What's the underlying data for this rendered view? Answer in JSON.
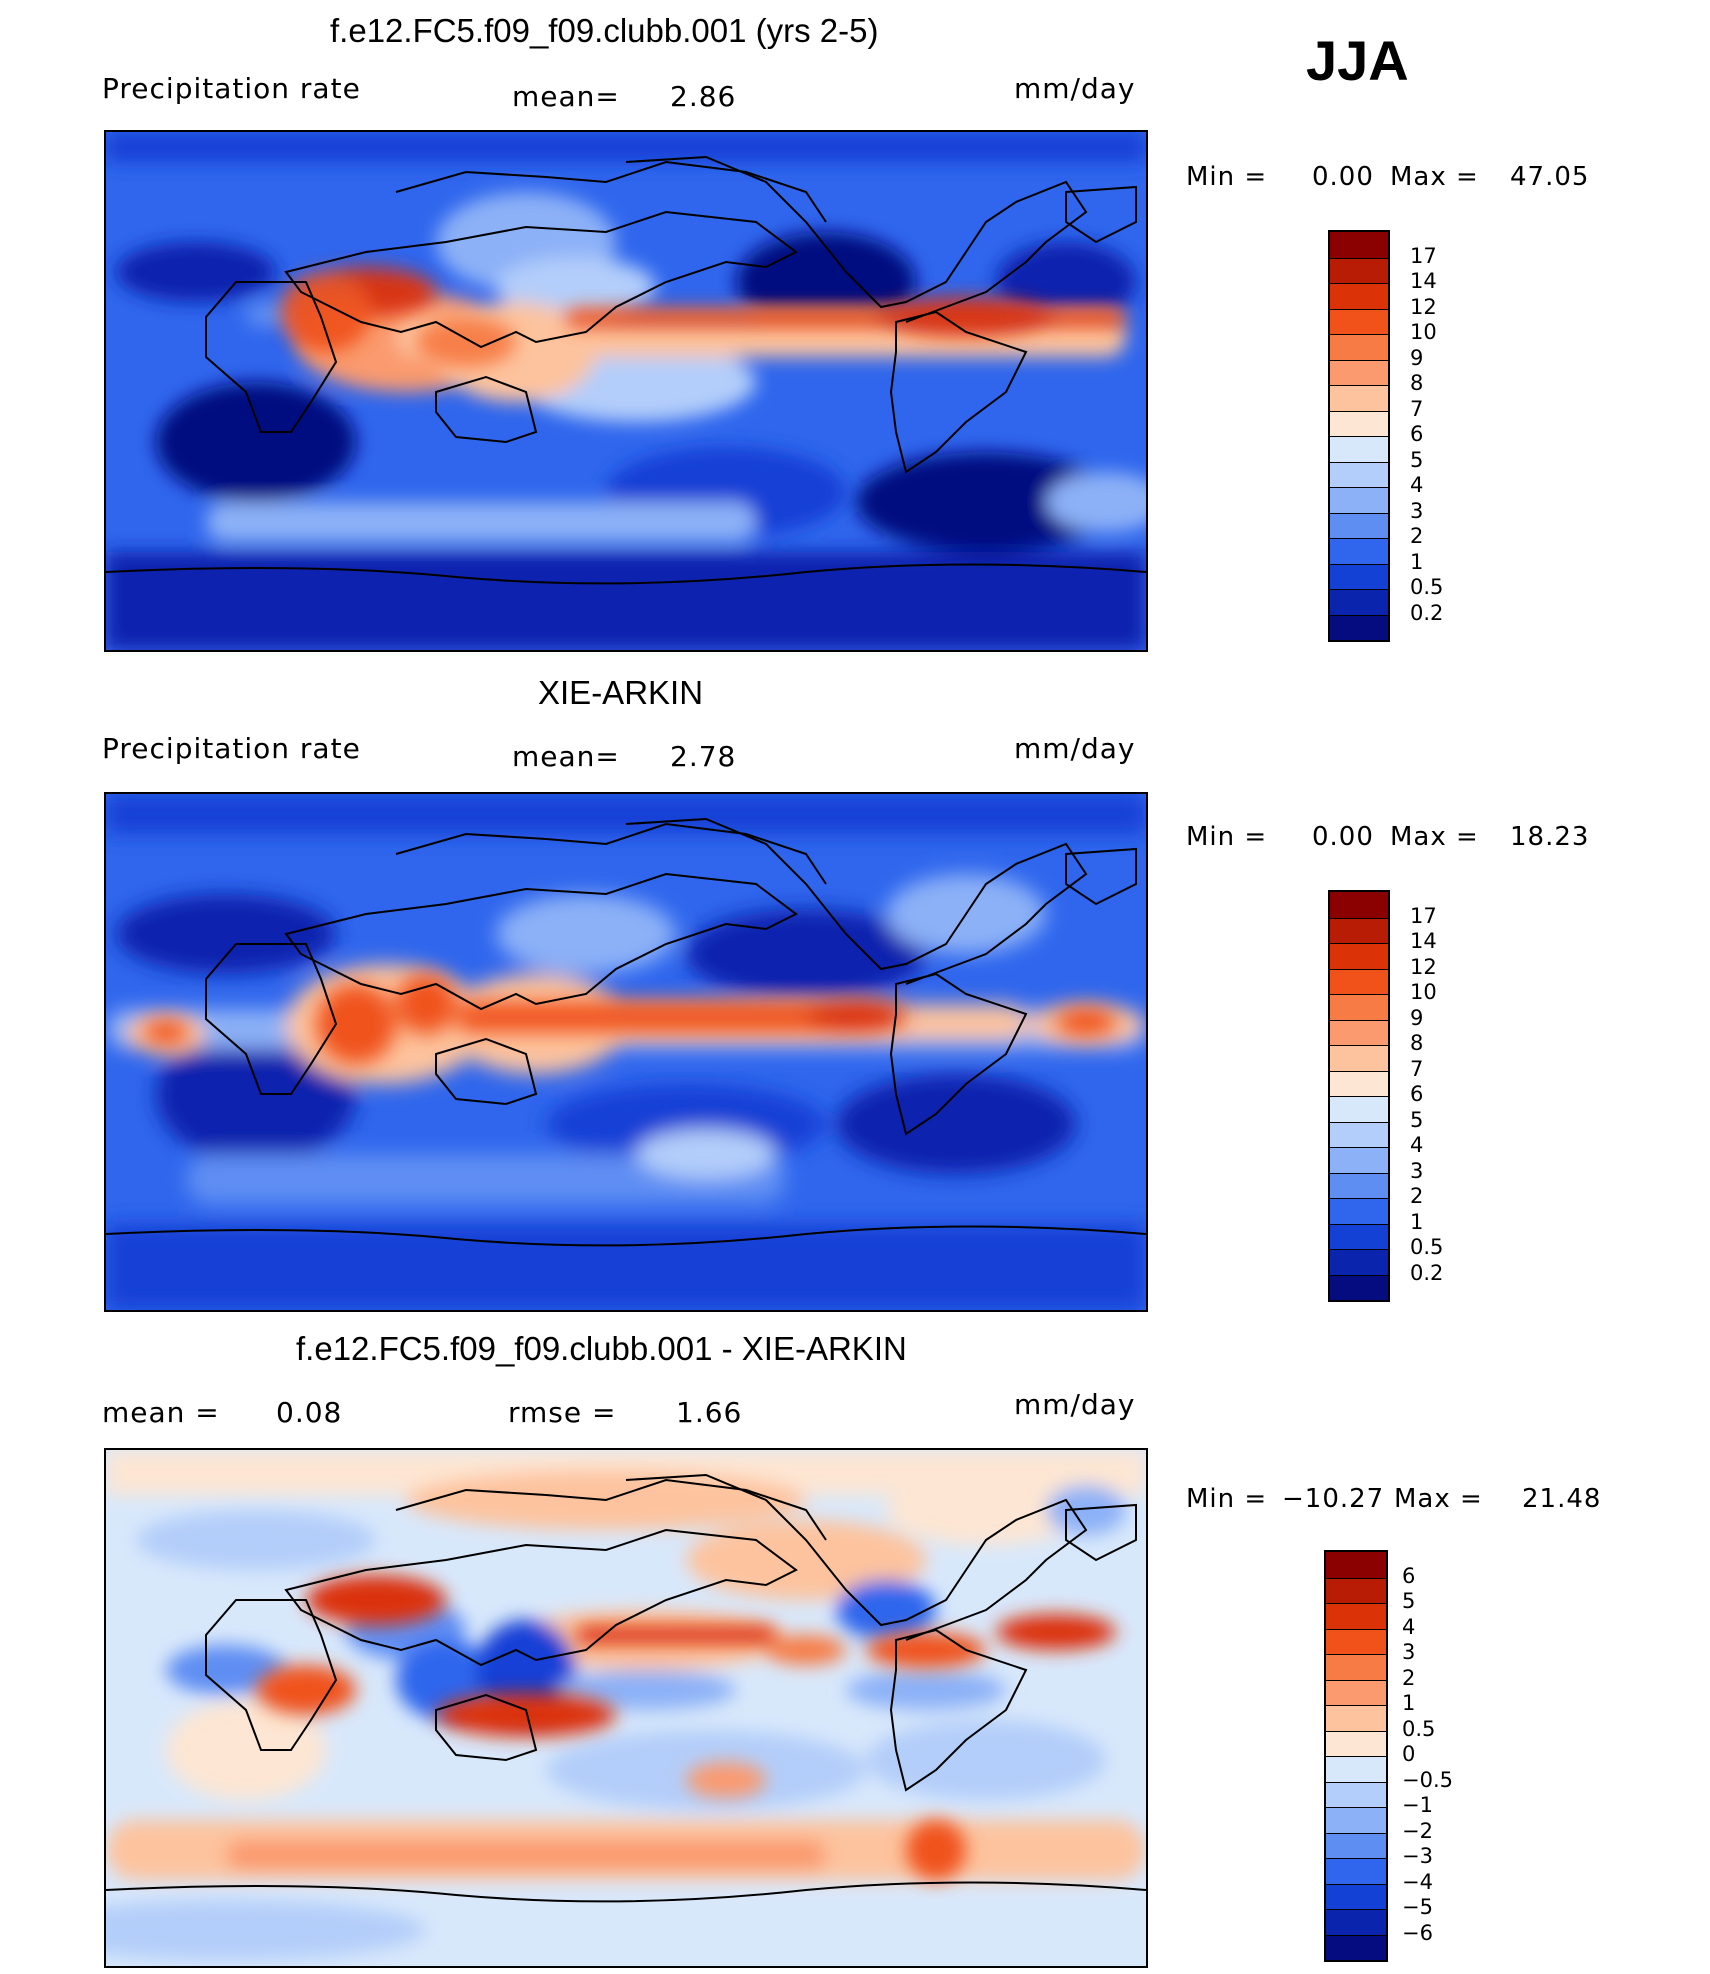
{
  "season": "JJA",
  "panels": [
    {
      "title": "f.e12.FC5.f09_f09.clubb.001 (yrs 2-5)",
      "left_label": "Precipitation  rate",
      "mid_label": "mean=",
      "mid_value": "2.86",
      "units": "mm/day",
      "min_label": "Min  =",
      "min_value": "0.00",
      "max_label": "Max  =",
      "max_value": "47.05",
      "colorbar_labels": [
        "17",
        "14",
        "12",
        "10",
        "9",
        "8",
        "7",
        "6",
        "5",
        "4",
        "3",
        "2",
        "1",
        "0.5",
        "0.2"
      ],
      "colorbar_colors": [
        "#8b0000",
        "#b81c05",
        "#db3208",
        "#f0521a",
        "#f77b45",
        "#fa9a6e",
        "#fdc39e",
        "#fde6d3",
        "#d8e8fb",
        "#b3cefa",
        "#8cb1f7",
        "#5f8ef3",
        "#2f66ed",
        "#1341d6",
        "#0a24ae",
        "#040c80"
      ]
    },
    {
      "title": "XIE-ARKIN",
      "left_label": "Precipitation  rate",
      "mid_label": "mean=",
      "mid_value": "2.78",
      "units": "mm/day",
      "min_label": "Min  =",
      "min_value": "0.00",
      "max_label": "Max  =",
      "max_value": "18.23",
      "colorbar_labels": [
        "17",
        "14",
        "12",
        "10",
        "9",
        "8",
        "7",
        "6",
        "5",
        "4",
        "3",
        "2",
        "1",
        "0.5",
        "0.2"
      ],
      "colorbar_colors": [
        "#8b0000",
        "#b81c05",
        "#db3208",
        "#f0521a",
        "#f77b45",
        "#fa9a6e",
        "#fdc39e",
        "#fde6d3",
        "#d8e8fb",
        "#b3cefa",
        "#8cb1f7",
        "#5f8ef3",
        "#2f66ed",
        "#1341d6",
        "#0a24ae",
        "#040c80"
      ]
    },
    {
      "title": "f.e12.FC5.f09_f09.clubb.001 - XIE-ARKIN",
      "left_label": "mean  =",
      "left_value": "0.08",
      "mid_label": "rmse  =",
      "mid_value": "1.66",
      "units": "mm/day",
      "min_label": "Min  =",
      "min_value": "−10.27",
      "max_label": "Max  =",
      "max_value": "21.48",
      "colorbar_labels": [
        "6",
        "5",
        "4",
        "3",
        "2",
        "1",
        "0.5",
        "0",
        "−0.5",
        "−1",
        "−2",
        "−3",
        "−4",
        "−5",
        "−6"
      ],
      "colorbar_colors": [
        "#8b0000",
        "#b81c05",
        "#db3208",
        "#f0521a",
        "#f77b45",
        "#fa9a6e",
        "#fdc39e",
        "#fde6d3",
        "#d8e8fb",
        "#b3cefa",
        "#8cb1f7",
        "#5f8ef3",
        "#2f66ed",
        "#1341d6",
        "#0a24ae",
        "#040c80"
      ]
    }
  ]
}
